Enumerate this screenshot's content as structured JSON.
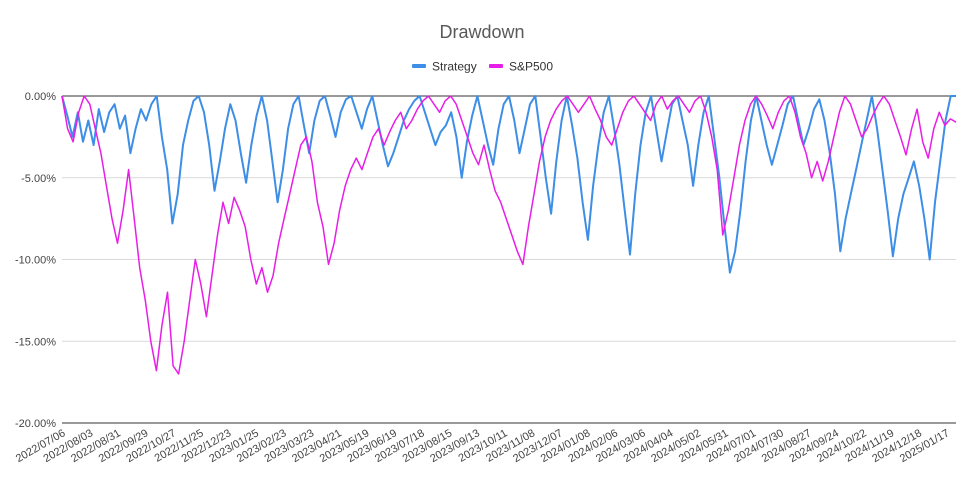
{
  "chart_data": {
    "type": "line",
    "title": "Drawdown",
    "xlabel": "",
    "ylabel": "",
    "ylim": [
      -20,
      0
    ],
    "y_ticks": [
      "0.00%",
      "-5.00%",
      "-10.00%",
      "-15.00%",
      "-20.00%"
    ],
    "y_tick_values": [
      0,
      -5,
      -10,
      -15,
      -20
    ],
    "x_ticks": [
      "2022/07/06",
      "2022/08/03",
      "2022/08/31",
      "2022/09/29",
      "2022/10/27",
      "2022/11/25",
      "2022/12/23",
      "2023/01/25",
      "2023/02/23",
      "2023/03/23",
      "2023/04/21",
      "2023/05/19",
      "2023/06/19",
      "2023/07/18",
      "2023/08/15",
      "2023/09/13",
      "2023/10/11",
      "2023/11/08",
      "2023/12/07",
      "2024/01/08",
      "2024/02/06",
      "2024/03/06",
      "2024/04/04",
      "2024/05/02",
      "2024/05/31",
      "2024/07/01",
      "2024/07/30",
      "2024/08/27",
      "2024/09/24",
      "2024/10/22",
      "2024/11/19",
      "2024/12/18",
      "2025/01/17"
    ],
    "grid": true,
    "legend_position": "top",
    "series": [
      {
        "name": "Strategy",
        "color": "#3d8ee6",
        "values": [
          0,
          -1.2,
          -2.5,
          -1.0,
          -2.8,
          -1.5,
          -3.0,
          -0.8,
          -2.2,
          -1.0,
          -0.5,
          -2.0,
          -1.2,
          -3.5,
          -2.0,
          -0.8,
          -1.5,
          -0.5,
          0,
          -2.5,
          -4.5,
          -7.8,
          -6.0,
          -3.0,
          -1.5,
          -0.3,
          0,
          -1.0,
          -3.0,
          -5.8,
          -4.0,
          -2.0,
          -0.5,
          -1.5,
          -3.5,
          -5.3,
          -3.0,
          -1.2,
          0,
          -1.5,
          -4.0,
          -6.5,
          -4.5,
          -2.0,
          -0.5,
          0,
          -1.8,
          -3.5,
          -1.5,
          -0.3,
          0,
          -1.2,
          -2.5,
          -1.0,
          -0.2,
          0,
          -1.0,
          -2.0,
          -0.8,
          0,
          -1.5,
          -3.0,
          -4.3,
          -3.5,
          -2.5,
          -1.5,
          -0.8,
          -0.3,
          0,
          -1.0,
          -2.0,
          -3.0,
          -2.2,
          -1.8,
          -1.0,
          -2.5,
          -5.0,
          -2.8,
          -1.2,
          0,
          -1.5,
          -3.0,
          -4.2,
          -2.0,
          -0.5,
          0,
          -1.5,
          -3.5,
          -2.0,
          -0.5,
          0,
          -2.5,
          -5.0,
          -7.2,
          -4.0,
          -1.5,
          0,
          -1.8,
          -3.8,
          -6.5,
          -8.8,
          -5.5,
          -3.0,
          -1.0,
          0,
          -2.0,
          -4.2,
          -7.0,
          -9.7,
          -6.0,
          -3.0,
          -1.0,
          0,
          -2.0,
          -4.0,
          -2.2,
          -0.5,
          0,
          -1.5,
          -3.0,
          -5.5,
          -3.0,
          -1.0,
          0,
          -2.5,
          -5.0,
          -8.0,
          -10.8,
          -9.5,
          -7.0,
          -4.0,
          -1.5,
          0,
          -1.5,
          -3.0,
          -4.2,
          -3.0,
          -1.8,
          -0.5,
          0,
          -1.5,
          -3.0,
          -2.0,
          -0.8,
          -0.2,
          -1.5,
          -3.5,
          -6.0,
          -9.5,
          -7.5,
          -6.0,
          -4.5,
          -3.0,
          -1.5,
          0,
          -2.0,
          -4.5,
          -7.0,
          -9.8,
          -7.5,
          -6.0,
          -5.0,
          -4.0,
          -5.5,
          -7.5,
          -10.0,
          -6.5,
          -4.0,
          -1.5,
          0,
          0
        ]
      },
      {
        "name": "S&P500",
        "color": "#e81ee8",
        "values": [
          0,
          -2.0,
          -2.8,
          -1.0,
          0,
          -0.5,
          -2.0,
          -3.5,
          -5.5,
          -7.5,
          -9.0,
          -7.0,
          -4.5,
          -7.5,
          -10.5,
          -12.5,
          -15.0,
          -16.8,
          -14.0,
          -12.0,
          -16.5,
          -17.0,
          -15.0,
          -12.5,
          -10.0,
          -11.5,
          -13.5,
          -11.0,
          -8.5,
          -6.5,
          -7.8,
          -6.2,
          -7.0,
          -8.0,
          -10.0,
          -11.5,
          -10.5,
          -12.0,
          -11.0,
          -9.0,
          -7.5,
          -6.0,
          -4.5,
          -3.0,
          -2.5,
          -4.0,
          -6.5,
          -8.0,
          -10.3,
          -9.0,
          -7.0,
          -5.5,
          -4.5,
          -3.8,
          -4.5,
          -3.5,
          -2.5,
          -2.0,
          -3.0,
          -2.2,
          -1.5,
          -1.0,
          -2.0,
          -1.5,
          -0.8,
          -0.3,
          0,
          -0.5,
          -1.0,
          -0.3,
          0,
          -0.5,
          -1.5,
          -2.5,
          -3.5,
          -4.2,
          -3.0,
          -4.5,
          -5.8,
          -6.5,
          -7.5,
          -8.5,
          -9.5,
          -10.3,
          -8.0,
          -6.0,
          -4.0,
          -2.5,
          -1.5,
          -0.8,
          -0.3,
          0,
          -0.5,
          -1.0,
          -0.5,
          0,
          -0.8,
          -1.5,
          -2.5,
          -3.0,
          -2.0,
          -1.0,
          -0.3,
          0,
          -0.5,
          -1.0,
          -1.5,
          -0.5,
          0,
          -0.8,
          -0.3,
          0,
          -0.5,
          -1.0,
          -0.3,
          0,
          -1.0,
          -2.5,
          -4.5,
          -8.5,
          -7.0,
          -5.0,
          -3.0,
          -1.5,
          -0.5,
          0,
          -0.5,
          -1.2,
          -2.0,
          -1.0,
          -0.3,
          0,
          -1.0,
          -2.5,
          -3.5,
          -5.0,
          -4.0,
          -5.2,
          -4.0,
          -2.5,
          -1.0,
          0,
          -0.5,
          -1.5,
          -2.5,
          -2.0,
          -1.2,
          -0.5,
          0,
          -0.5,
          -1.5,
          -2.5,
          -3.6,
          -2.0,
          -0.8,
          -2.8,
          -3.8,
          -2.0,
          -1.0,
          -1.8,
          -1.4,
          -1.6
        ]
      }
    ]
  }
}
